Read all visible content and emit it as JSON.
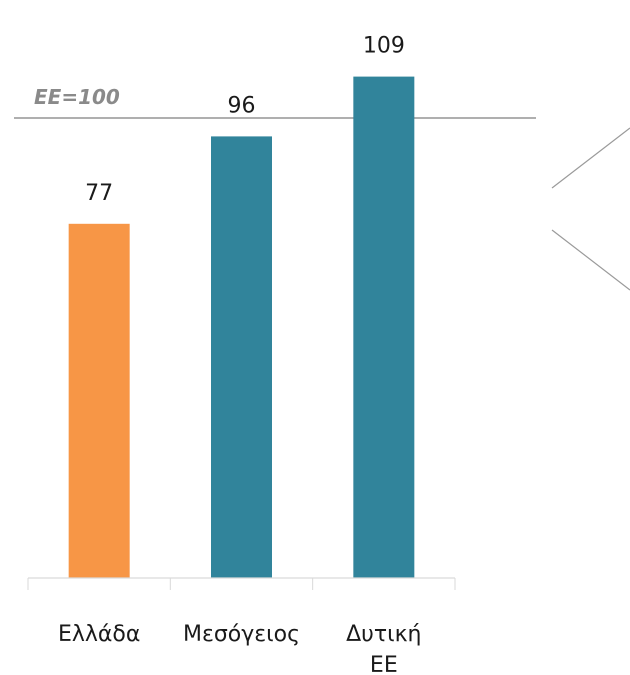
{
  "chart_data": {
    "type": "bar",
    "categories": [
      "Ελλάδα",
      "Μεσόγειος",
      "Δυτική ΕΕ"
    ],
    "values": [
      77,
      96,
      109
    ],
    "data_labels": [
      "77",
      "96",
      "109"
    ],
    "bar_colors": [
      "#f79646",
      "#31849b",
      "#31849b"
    ],
    "reference_line": {
      "value": 100,
      "label": "ΕΕ=100",
      "color": "#7f7f7f"
    },
    "title": "",
    "xlabel": "",
    "ylabel": "",
    "ylim": [
      0,
      115
    ],
    "grid": false,
    "legend": "none"
  }
}
